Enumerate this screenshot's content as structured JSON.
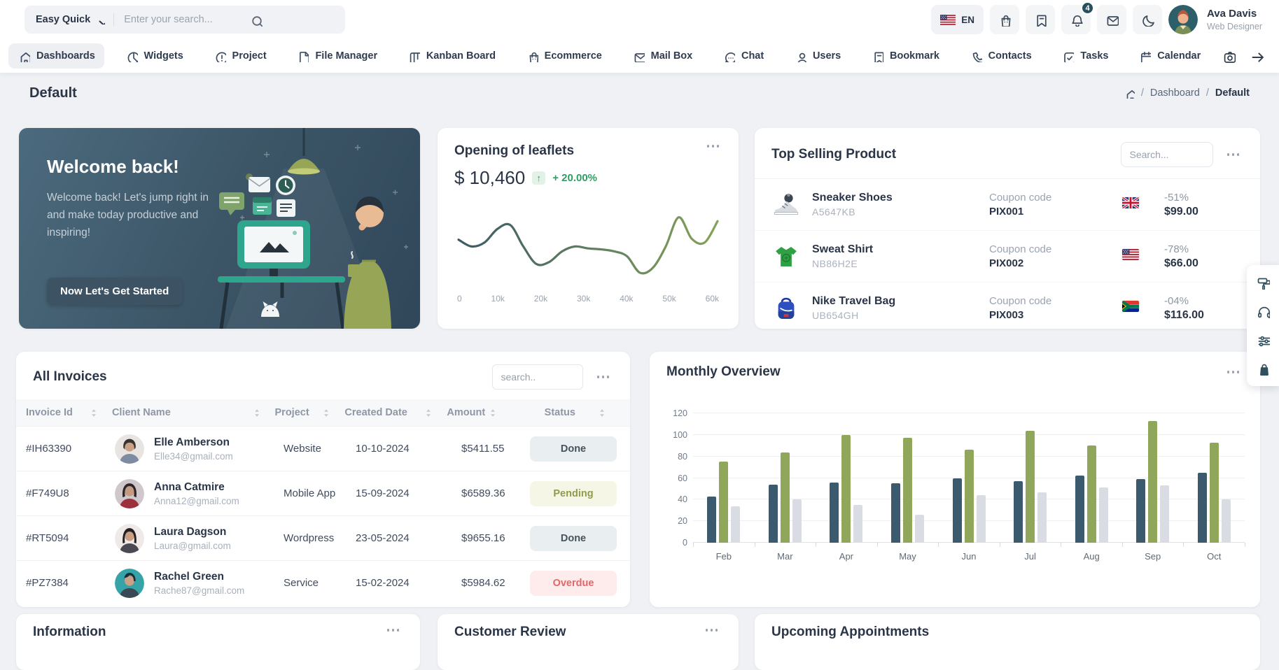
{
  "header": {
    "quick_label": "Easy Quick",
    "search_placeholder": "Enter your search...",
    "language": "EN",
    "notification_count": "4",
    "user_name": "Ava Davis",
    "user_role": "Web Designer"
  },
  "nav": {
    "items": [
      {
        "label": "Dashboards",
        "active": true
      },
      {
        "label": "Widgets"
      },
      {
        "label": "Project"
      },
      {
        "label": "File Manager"
      },
      {
        "label": "Kanban Board"
      },
      {
        "label": "Ecommerce"
      },
      {
        "label": "Mail Box"
      },
      {
        "label": "Chat"
      },
      {
        "label": "Users"
      },
      {
        "label": "Bookmark"
      },
      {
        "label": "Contacts"
      },
      {
        "label": "Tasks"
      },
      {
        "label": "Calendar"
      }
    ]
  },
  "page": {
    "title": "Default",
    "breadcrumb": [
      "Dashboard",
      "Default"
    ]
  },
  "welcome": {
    "title": "Welcome back!",
    "message": "Welcome back! Let's jump right in and make today productive and inspiring!",
    "button_label": "Now Let's Get Started"
  },
  "leaflets": {
    "title": "Opening of leaflets",
    "amount": "$ 10,460",
    "change": "+ 20.00%",
    "chart_data": {
      "type": "line",
      "title": "Opening of leaflets",
      "x_labels": [
        "0",
        "10k",
        "20k",
        "30k",
        "40k",
        "50k",
        "60k"
      ],
      "x_max": 60,
      "v_max": 82,
      "points": [
        {
          "x": 0,
          "v": 47
        },
        {
          "x": 3,
          "v": 40
        },
        {
          "x": 6,
          "v": 44
        },
        {
          "x": 9,
          "v": 58
        },
        {
          "x": 12,
          "v": 62
        },
        {
          "x": 15,
          "v": 40
        },
        {
          "x": 18,
          "v": 22
        },
        {
          "x": 21,
          "v": 24
        },
        {
          "x": 24,
          "v": 35
        },
        {
          "x": 27,
          "v": 40
        },
        {
          "x": 30,
          "v": 38
        },
        {
          "x": 33,
          "v": 37
        },
        {
          "x": 36,
          "v": 35
        },
        {
          "x": 39,
          "v": 30
        },
        {
          "x": 42,
          "v": 13
        },
        {
          "x": 45,
          "v": 18
        },
        {
          "x": 48,
          "v": 40
        },
        {
          "x": 51,
          "v": 70
        },
        {
          "x": 54,
          "v": 48
        },
        {
          "x": 57,
          "v": 44
        },
        {
          "x": 60,
          "v": 66
        }
      ],
      "line_gradient": [
        "#3d5a68",
        "#84a258"
      ]
    }
  },
  "top_selling": {
    "title": "Top Selling Product",
    "search_placeholder": "Search...",
    "coupon_label": "Coupon code",
    "products": [
      {
        "name": "Sneaker Shoes",
        "sku": "A5647KB",
        "coupon": "PIX001",
        "country": "United Kingdom",
        "discount": "-51%",
        "price": "$99.00"
      },
      {
        "name": "Sweat Shirt",
        "sku": "NB86H2E",
        "coupon": "PIX002",
        "country": "United States",
        "discount": "-78%",
        "price": "$66.00"
      },
      {
        "name": "Nike Travel Bag",
        "sku": "UB654GH",
        "coupon": "PIX003",
        "country": "South Africa",
        "discount": "-04%",
        "price": "$116.00"
      }
    ]
  },
  "invoices": {
    "title": "All Invoices",
    "search_placeholder": "search..",
    "columns": [
      "Invoice Id",
      "Client Name",
      "Project",
      "Created Date",
      "Amount",
      "Status"
    ],
    "rows": [
      {
        "id": "#IH63390",
        "name": "Elle Amberson",
        "email": "Elle34@gmail.com",
        "project": "Website",
        "date": "10-10-2024",
        "amount": "$5411.55",
        "status": "Done"
      },
      {
        "id": "#F749U8",
        "name": "Anna Catmire",
        "email": "Anna12@gmail.com",
        "project": "Mobile App",
        "date": "15-09-2024",
        "amount": "$6589.36",
        "status": "Pending"
      },
      {
        "id": "#RT5094",
        "name": "Laura Dagson",
        "email": "Laura@gmail.com",
        "project": "Wordpress",
        "date": "23-05-2024",
        "amount": "$9655.16",
        "status": "Done"
      },
      {
        "id": "#PZ7384",
        "name": "Rachel Green",
        "email": "Rache87@gmail.com",
        "project": "Service",
        "date": "15-02-2024",
        "amount": "$5984.62",
        "status": "Overdue"
      }
    ]
  },
  "monthly": {
    "title": "Monthly Overview",
    "chart_data": {
      "type": "bar",
      "title": "Monthly Overview",
      "categories": [
        "Feb",
        "Mar",
        "Apr",
        "May",
        "Jun",
        "Jul",
        "Aug",
        "Sep",
        "Oct"
      ],
      "series": [
        {
          "name": "series-dark",
          "values": [
            43,
            54,
            56,
            55,
            60,
            57,
            62,
            59,
            65
          ]
        },
        {
          "name": "series-green",
          "values": [
            75,
            84,
            100,
            97,
            86,
            104,
            90,
            113,
            93
          ]
        },
        {
          "name": "series-gray",
          "values": [
            34,
            40,
            35,
            26,
            44,
            47,
            51,
            53,
            40
          ]
        }
      ],
      "colors": [
        "#3b5a6e",
        "#8fa65b",
        "#d9dde3"
      ],
      "ylim": [
        0,
        120
      ],
      "ytick_step": 20,
      "grid": true,
      "legend": false
    }
  },
  "bottom": {
    "information": "Information",
    "customer_review": "Customer Review",
    "upcoming": "Upcoming Appointments"
  },
  "colors": {
    "accent_green": "#2e9e63",
    "status_done_bg": "#e9eef0",
    "status_pending_bg": "#f5f6e6",
    "status_overdue_bg": "#fdeceb",
    "welcome_bg": "#3c5667",
    "page_bg": "#eff1f5"
  }
}
